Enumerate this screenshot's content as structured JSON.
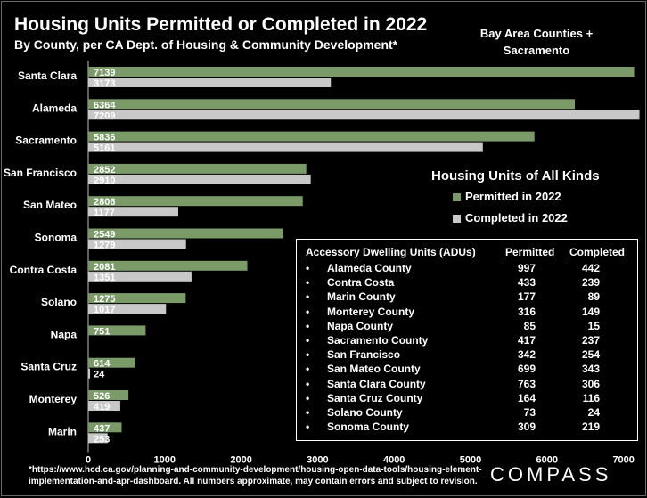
{
  "title": "Housing Units Permitted or Completed in 2022",
  "subtitle": "By County, per CA Dept. of Housing & Community Development*",
  "region_line1": "Bay Area Counties +",
  "region_line2": "Sacramento",
  "legend": {
    "title": "Housing Units of All Kinds",
    "permitted": "Permitted in 2022",
    "completed": "Completed in 2022"
  },
  "colors": {
    "permitted": "#7a9a68",
    "completed": "#c8c8c8",
    "background": "#000000"
  },
  "chart_data": {
    "type": "bar",
    "orientation": "horizontal",
    "categories": [
      "Santa Clara",
      "Alameda",
      "Sacramento",
      "San Francisco",
      "San Mateo",
      "Sonoma",
      "Contra Costa",
      "Solano",
      "Napa",
      "Santa Cruz",
      "Monterey",
      "Marin"
    ],
    "series": [
      {
        "name": "Permitted in 2022",
        "values": [
          7139,
          6364,
          5836,
          2852,
          2806,
          2549,
          2081,
          1275,
          751,
          614,
          526,
          437
        ]
      },
      {
        "name": "Completed in 2022",
        "values": [
          3173,
          7209,
          5161,
          2910,
          1177,
          1279,
          1351,
          1017,
          null,
          24,
          419,
          253
        ]
      }
    ],
    "xticks": [
      0,
      1000,
      2000,
      3000,
      4000,
      5000,
      6000,
      7000
    ],
    "xlim": [
      0,
      7200
    ],
    "title": "Housing Units Permitted or Completed in 2022"
  },
  "adu_table": {
    "headers": [
      "Accessory Dwelling Units (ADUs)",
      "Permitted",
      "Completed"
    ],
    "bullet": "•",
    "rows": [
      [
        "Alameda County",
        "997",
        "442"
      ],
      [
        "Contra Costa",
        "433",
        "239"
      ],
      [
        "Marin County",
        "177",
        "89"
      ],
      [
        "Monterey County",
        "316",
        "149"
      ],
      [
        "Napa County",
        "85",
        "15"
      ],
      [
        "Sacramento County",
        "417",
        "237"
      ],
      [
        "San Francisco",
        "342",
        "254"
      ],
      [
        "San Mateo County",
        "699",
        "343"
      ],
      [
        "Santa Clara County",
        "763",
        "306"
      ],
      [
        "Santa Cruz County",
        "164",
        "116"
      ],
      [
        "Solano County",
        "73",
        "24"
      ],
      [
        "Sonoma County",
        "309",
        "219"
      ]
    ]
  },
  "footnote_line1": "*https://www.hcd.ca.gov/planning-and-community-development/housing-open-data-tools/housing-element-",
  "footnote_line2": "implementation-and-apr-dashboard. All numbers approximate, may contain errors and subject to revision.",
  "logo": "COMPASS"
}
